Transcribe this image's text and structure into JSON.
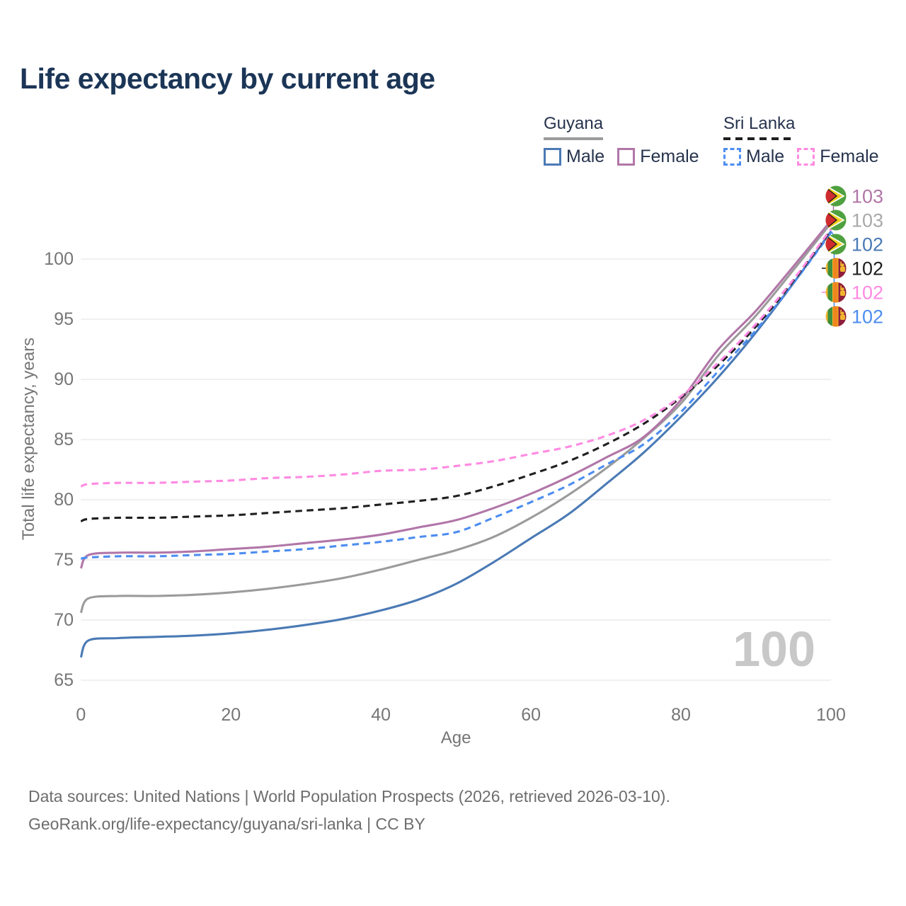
{
  "title": "Life expectancy by current age",
  "watermark": "100",
  "legend": {
    "groups": [
      {
        "country": "Guyana",
        "line_style": "solid",
        "line_color": "#9b9b9b",
        "items": [
          {
            "label": "Male",
            "color": "#4a7ab5",
            "style": "solid"
          },
          {
            "label": "Female",
            "color": "#b176a8",
            "style": "solid"
          }
        ]
      },
      {
        "country": "Sri Lanka",
        "line_style": "dashed",
        "line_color": "#1f1f1f",
        "items": [
          {
            "label": "Male",
            "color": "#4d8df0",
            "style": "dashed"
          },
          {
            "label": "Female",
            "color": "#ff8ae2",
            "style": "dashed"
          }
        ]
      }
    ]
  },
  "footer": {
    "line1": "Data sources: United Nations | World Population Prospects (2026, retrieved 2026-03-10).",
    "line2": "GeoRank.org/life-expectancy/guyana/sri-lanka | CC BY"
  },
  "chart_data": {
    "type": "line",
    "title": "Life expectancy by current age",
    "xlabel": "Age",
    "ylabel": "Total life expectancy, years",
    "xlim": [
      0,
      100
    ],
    "ylim": [
      63,
      104.5
    ],
    "xticks": [
      0,
      20,
      40,
      60,
      80,
      100
    ],
    "yticks": [
      65,
      70,
      75,
      80,
      85,
      90,
      95,
      100
    ],
    "grid": "horizontal-only",
    "legend_position": "top-right",
    "watermark": "100",
    "ages": [
      0,
      1,
      5,
      10,
      15,
      20,
      25,
      30,
      35,
      40,
      45,
      50,
      55,
      60,
      65,
      70,
      75,
      80,
      85,
      90,
      95,
      100
    ],
    "series": [
      {
        "name": "Guyana Male",
        "country": "Guyana",
        "sex": "Male",
        "style": "solid",
        "color": "#4a7ab5",
        "flag": "guyana",
        "end_label": "102",
        "label_row": 2,
        "values": [
          66.9,
          68.3,
          68.5,
          68.6,
          68.7,
          68.9,
          69.2,
          69.6,
          70.1,
          70.8,
          71.7,
          73.0,
          74.8,
          76.8,
          78.8,
          81.3,
          83.9,
          86.9,
          90.2,
          93.9,
          98.0,
          102.3
        ]
      },
      {
        "name": "Guyana",
        "country": "Guyana",
        "sex": "All",
        "style": "solid",
        "color": "#9b9b9b",
        "flag": "guyana",
        "end_label": "103",
        "label_row": 1,
        "values": [
          70.6,
          71.8,
          72.0,
          72.0,
          72.1,
          72.3,
          72.6,
          73.0,
          73.5,
          74.2,
          75.0,
          75.8,
          76.9,
          78.5,
          80.4,
          82.6,
          85.1,
          88.0,
          92.0,
          95.3,
          99.1,
          103.0
        ]
      },
      {
        "name": "Guyana Female",
        "country": "Guyana",
        "sex": "Female",
        "style": "solid",
        "color": "#b176a8",
        "flag": "guyana",
        "end_label": "103",
        "label_row": 0,
        "values": [
          74.3,
          75.4,
          75.6,
          75.6,
          75.7,
          75.9,
          76.1,
          76.4,
          76.7,
          77.1,
          77.7,
          78.3,
          79.3,
          80.5,
          81.9,
          83.5,
          85.2,
          88.3,
          92.5,
          95.7,
          99.4,
          103.2
        ]
      },
      {
        "name": "Sri Lanka Male",
        "country": "Sri Lanka",
        "sex": "Male",
        "style": "dashed",
        "color": "#4d8df0",
        "flag": "srilanka",
        "end_label": "102",
        "label_row": 5,
        "values": [
          75.1,
          75.2,
          75.3,
          75.3,
          75.4,
          75.5,
          75.7,
          75.9,
          76.2,
          76.5,
          76.9,
          77.3,
          78.5,
          79.8,
          81.2,
          82.9,
          84.6,
          87.3,
          90.7,
          94.1,
          98.0,
          102.2
        ]
      },
      {
        "name": "Sri Lanka",
        "country": "Sri Lanka",
        "sex": "All",
        "style": "dashed",
        "color": "#1f1f1f",
        "flag": "srilanka",
        "end_label": "102",
        "label_row": 3,
        "values": [
          78.2,
          78.4,
          78.5,
          78.5,
          78.6,
          78.7,
          78.9,
          79.1,
          79.3,
          79.6,
          79.9,
          80.3,
          81.1,
          82.1,
          83.2,
          84.6,
          86.3,
          88.5,
          91.2,
          94.4,
          98.2,
          102.4
        ]
      },
      {
        "name": "Sri Lanka Female",
        "country": "Sri Lanka",
        "sex": "Female",
        "style": "dashed",
        "color": "#ff8ae2",
        "flag": "srilanka",
        "end_label": "102",
        "label_row": 4,
        "values": [
          81.1,
          81.3,
          81.4,
          81.4,
          81.5,
          81.6,
          81.8,
          81.9,
          82.1,
          82.4,
          82.5,
          82.8,
          83.2,
          83.8,
          84.4,
          85.3,
          86.6,
          88.6,
          91.4,
          94.6,
          98.3,
          102.5
        ]
      }
    ]
  }
}
